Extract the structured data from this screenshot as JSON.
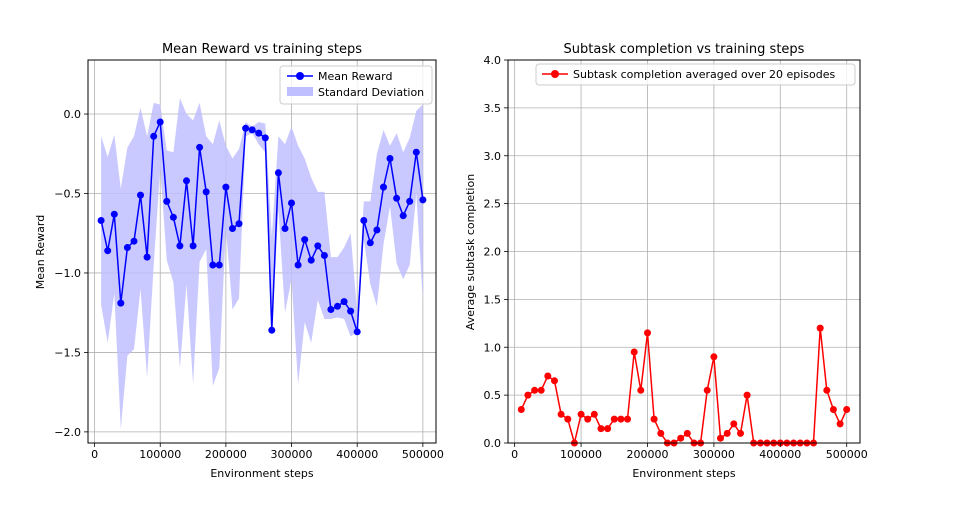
{
  "chart_data": [
    {
      "type": "line",
      "title": "Mean Reward vs training steps",
      "xlabel": "Environment steps",
      "ylabel": "Mean Reward",
      "xlim": [
        -10000,
        520000
      ],
      "ylim": [
        -2.07,
        0.34
      ],
      "xticks": [
        0,
        100000,
        200000,
        300000,
        400000,
        500000
      ],
      "yticks": [
        -2.0,
        -1.5,
        -1.0,
        -0.5,
        0.0
      ],
      "xtick_labels": [
        "0",
        "100000",
        "200000",
        "300000",
        "400000",
        "500000"
      ],
      "ytick_labels": [
        "−2.0",
        "−1.5",
        "−1.0",
        "−0.5",
        "0.0"
      ],
      "grid": true,
      "legend": "top-right",
      "color": "#0000ff",
      "band_color": "#bfbfff",
      "legend_entries": [
        "Mean Reward",
        "Standard Deviation"
      ],
      "x": [
        10000,
        20000,
        30000,
        40000,
        50000,
        60000,
        70000,
        80000,
        90000,
        100000,
        110000,
        120000,
        130000,
        140000,
        150000,
        160000,
        170000,
        180000,
        190000,
        200000,
        210000,
        220000,
        230000,
        240000,
        250000,
        260000,
        270000,
        280000,
        290000,
        300000,
        310000,
        320000,
        330000,
        340000,
        350000,
        360000,
        370000,
        380000,
        390000,
        400000,
        410000,
        420000,
        430000,
        440000,
        450000,
        460000,
        470000,
        480000,
        490000,
        500000
      ],
      "series": [
        {
          "name": "Mean Reward",
          "values": [
            -0.67,
            -0.86,
            -0.63,
            -1.19,
            -0.84,
            -0.8,
            -0.51,
            -0.9,
            -0.14,
            -0.05,
            -0.55,
            -0.65,
            -0.83,
            -0.42,
            -0.83,
            -0.21,
            -0.49,
            -0.95,
            -0.95,
            -0.46,
            -0.72,
            -0.69,
            -0.09,
            -0.1,
            -0.12,
            -0.15,
            -1.36,
            -0.37,
            -0.72,
            -0.56,
            -0.95,
            -0.79,
            -0.92,
            -0.83,
            -0.89,
            -1.23,
            -1.21,
            -1.18,
            -1.24,
            -1.37,
            -0.67,
            -0.81,
            -0.73,
            -0.46,
            -0.28,
            -0.53,
            -0.64,
            -0.55,
            -0.24,
            -0.54
          ]
        },
        {
          "name": "Standard Deviation",
          "upper": [
            -0.14,
            -0.27,
            -0.13,
            -0.47,
            -0.21,
            -0.14,
            0.04,
            -0.14,
            0.07,
            0.06,
            -0.23,
            -0.24,
            0.1,
            0.0,
            -0.04,
            0.07,
            -0.14,
            -0.19,
            -0.04,
            -0.2,
            -0.28,
            -0.22,
            -0.05,
            -0.08,
            -0.05,
            -0.06,
            -0.77,
            -0.14,
            -0.19,
            -0.08,
            -0.2,
            -0.28,
            -0.4,
            -0.49,
            -0.49,
            -0.9,
            -0.9,
            -0.84,
            -0.75,
            -1.25,
            -0.55,
            -0.55,
            -0.25,
            -0.1,
            -0.2,
            -0.12,
            -0.24,
            -0.15,
            0.02,
            0.06
          ],
          "lower": [
            -1.2,
            -1.44,
            -1.13,
            -1.98,
            -1.52,
            -1.48,
            -1.1,
            -1.66,
            -0.95,
            -0.34,
            -0.92,
            -1.06,
            -1.6,
            -1.07,
            -1.7,
            -0.93,
            -0.85,
            -1.71,
            -1.6,
            -0.72,
            -1.23,
            -1.16,
            -0.14,
            -0.12,
            -0.19,
            -0.24,
            -1.38,
            -0.6,
            -1.25,
            -1.04,
            -1.7,
            -1.31,
            -1.44,
            -1.17,
            -1.29,
            -1.29,
            -1.28,
            -1.29,
            -1.4,
            -1.37,
            -0.79,
            -1.07,
            -1.21,
            -0.82,
            -0.58,
            -0.94,
            -1.04,
            -0.95,
            -0.5,
            -1.18
          ]
        }
      ]
    },
    {
      "type": "line",
      "title": "Subtask completion vs training steps",
      "xlabel": "Environment steps",
      "ylabel": "Average subtask completion",
      "xlim": [
        -10000,
        520000
      ],
      "ylim": [
        0.0,
        4.0
      ],
      "xticks": [
        0,
        100000,
        200000,
        300000,
        400000,
        500000
      ],
      "yticks": [
        0.0,
        0.5,
        1.0,
        1.5,
        2.0,
        2.5,
        3.0,
        3.5,
        4.0
      ],
      "xtick_labels": [
        "0",
        "100000",
        "200000",
        "300000",
        "400000",
        "500000"
      ],
      "ytick_labels": [
        "0.0",
        "0.5",
        "1.0",
        "1.5",
        "2.0",
        "2.5",
        "3.0",
        "3.5",
        "4.0"
      ],
      "grid": true,
      "legend": "top-right",
      "color": "#ff0000",
      "x": [
        10000,
        20000,
        30000,
        40000,
        50000,
        60000,
        70000,
        80000,
        90000,
        100000,
        110000,
        120000,
        130000,
        140000,
        150000,
        160000,
        170000,
        180000,
        190000,
        200000,
        210000,
        220000,
        230000,
        240000,
        250000,
        260000,
        270000,
        280000,
        290000,
        300000,
        310000,
        320000,
        330000,
        340000,
        350000,
        360000,
        370000,
        380000,
        390000,
        400000,
        410000,
        420000,
        430000,
        440000,
        450000,
        460000,
        470000,
        480000,
        490000,
        500000
      ],
      "series": [
        {
          "name": "Subtask completion averaged over 20 episodes",
          "values": [
            0.35,
            0.5,
            0.55,
            0.55,
            0.7,
            0.65,
            0.3,
            0.25,
            0.0,
            0.3,
            0.25,
            0.3,
            0.15,
            0.15,
            0.25,
            0.25,
            0.25,
            0.95,
            0.55,
            1.15,
            0.25,
            0.1,
            0.0,
            0.0,
            0.05,
            0.1,
            0.0,
            0.0,
            0.55,
            0.9,
            0.05,
            0.1,
            0.2,
            0.1,
            0.5,
            0.0,
            0.0,
            0.0,
            0.0,
            0.0,
            0.0,
            0.0,
            0.0,
            0.0,
            0.0,
            1.2,
            0.55,
            0.35,
            0.2,
            0.35
          ]
        }
      ]
    }
  ]
}
